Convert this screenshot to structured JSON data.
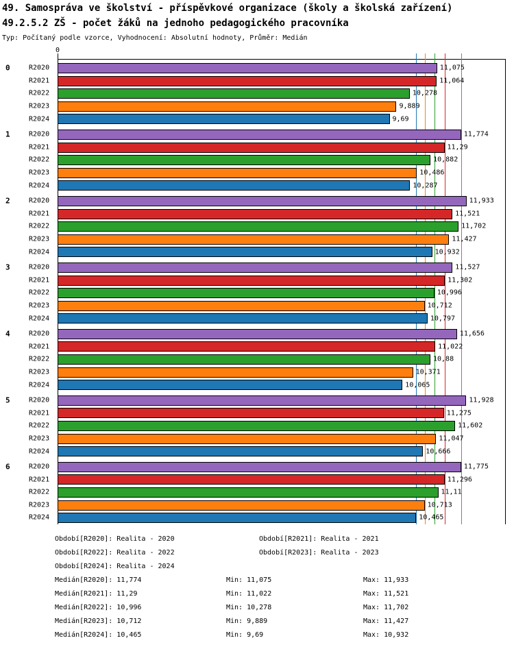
{
  "header": {
    "title": "49. Samospráva ve školství - příspěvkové organizace (školy a školská zařízení)",
    "subtitle": "49.2.5.2 ZŠ - počet žáků na jednoho pedagogického pracovníka",
    "meta": "Typ: Počítaný podle vzorce, Vyhodnocení: Absolutní hodnoty, Průměr: Medián"
  },
  "axis": {
    "zero_label": "0"
  },
  "chart_data": {
    "type": "bar",
    "orientation": "horizontal",
    "xlim": [
      0,
      13.06
    ],
    "grid": false,
    "series_order": [
      "R2020",
      "R2021",
      "R2022",
      "R2023",
      "R2024"
    ],
    "colors": {
      "R2020": "#9467bd",
      "R2021": "#d62728",
      "R2022": "#2ca02c",
      "R2023": "#ff7f0e",
      "R2024": "#1f77b4"
    },
    "groups": [
      {
        "category": "0",
        "bars": [
          {
            "series": "R2020",
            "value": 11.075,
            "label": "11,075"
          },
          {
            "series": "R2021",
            "value": 11.064,
            "label": "11,064"
          },
          {
            "series": "R2022",
            "value": 10.278,
            "label": "10,278"
          },
          {
            "series": "R2023",
            "value": 9.889,
            "label": "9,889"
          },
          {
            "series": "R2024",
            "value": 9.69,
            "label": "9,69"
          }
        ]
      },
      {
        "category": "1",
        "bars": [
          {
            "series": "R2020",
            "value": 11.774,
            "label": "11,774"
          },
          {
            "series": "R2021",
            "value": 11.29,
            "label": "11,29"
          },
          {
            "series": "R2022",
            "value": 10.882,
            "label": "10,882"
          },
          {
            "series": "R2023",
            "value": 10.486,
            "label": "10,486"
          },
          {
            "series": "R2024",
            "value": 10.287,
            "label": "10,287"
          }
        ]
      },
      {
        "category": "2",
        "bars": [
          {
            "series": "R2020",
            "value": 11.933,
            "label": "11,933"
          },
          {
            "series": "R2021",
            "value": 11.521,
            "label": "11,521"
          },
          {
            "series": "R2022",
            "value": 11.702,
            "label": "11,702"
          },
          {
            "series": "R2023",
            "value": 11.427,
            "label": "11,427"
          },
          {
            "series": "R2024",
            "value": 10.932,
            "label": "10,932"
          }
        ]
      },
      {
        "category": "3",
        "bars": [
          {
            "series": "R2020",
            "value": 11.527,
            "label": "11,527"
          },
          {
            "series": "R2021",
            "value": 11.302,
            "label": "11,302"
          },
          {
            "series": "R2022",
            "value": 10.996,
            "label": "10,996"
          },
          {
            "series": "R2023",
            "value": 10.712,
            "label": "10,712"
          },
          {
            "series": "R2024",
            "value": 10.797,
            "label": "10,797"
          }
        ]
      },
      {
        "category": "4",
        "bars": [
          {
            "series": "R2020",
            "value": 11.656,
            "label": "11,656"
          },
          {
            "series": "R2021",
            "value": 11.022,
            "label": "11,022"
          },
          {
            "series": "R2022",
            "value": 10.88,
            "label": "10,88"
          },
          {
            "series": "R2023",
            "value": 10.371,
            "label": "10,371"
          },
          {
            "series": "R2024",
            "value": 10.065,
            "label": "10,065"
          }
        ]
      },
      {
        "category": "5",
        "bars": [
          {
            "series": "R2020",
            "value": 11.928,
            "label": "11,928"
          },
          {
            "series": "R2021",
            "value": 11.275,
            "label": "11,275"
          },
          {
            "series": "R2022",
            "value": 11.602,
            "label": "11,602"
          },
          {
            "series": "R2023",
            "value": 11.047,
            "label": "11,047"
          },
          {
            "series": "R2024",
            "value": 10.666,
            "label": "10,666"
          }
        ]
      },
      {
        "category": "6",
        "bars": [
          {
            "series": "R2020",
            "value": 11.775,
            "label": "11,775"
          },
          {
            "series": "R2021",
            "value": 11.296,
            "label": "11,296"
          },
          {
            "series": "R2022",
            "value": 11.11,
            "label": "11,11"
          },
          {
            "series": "R2023",
            "value": 10.713,
            "label": "10,713"
          },
          {
            "series": "R2024",
            "value": 10.465,
            "label": "10,465"
          }
        ]
      }
    ],
    "medians": [
      {
        "series": "R2020",
        "value": 11.774
      },
      {
        "series": "R2021",
        "value": 11.29
      },
      {
        "series": "R2022",
        "value": 10.996
      },
      {
        "series": "R2023",
        "value": 10.712
      },
      {
        "series": "R2024",
        "value": 10.465
      }
    ]
  },
  "legend": {
    "periods": [
      "Období[R2020]: Realita - 2020",
      "Období[R2021]: Realita - 2021",
      "Období[R2022]: Realita - 2022",
      "Období[R2023]: Realita - 2023",
      "Období[R2024]: Realita - 2024"
    ],
    "stats": [
      {
        "median": "Medián[R2020]: 11,774",
        "min": "Min: 11,075",
        "max": "Max: 11,933"
      },
      {
        "median": "Medián[R2021]: 11,29",
        "min": "Min: 11,022",
        "max": "Max: 11,521"
      },
      {
        "median": "Medián[R2022]: 10,996",
        "min": "Min: 10,278",
        "max": "Max: 11,702"
      },
      {
        "median": "Medián[R2023]: 10,712",
        "min": "Min: 9,889",
        "max": "Max: 11,427"
      },
      {
        "median": "Medián[R2024]: 10,465",
        "min": "Min: 9,69",
        "max": "Max: 10,932"
      }
    ]
  }
}
